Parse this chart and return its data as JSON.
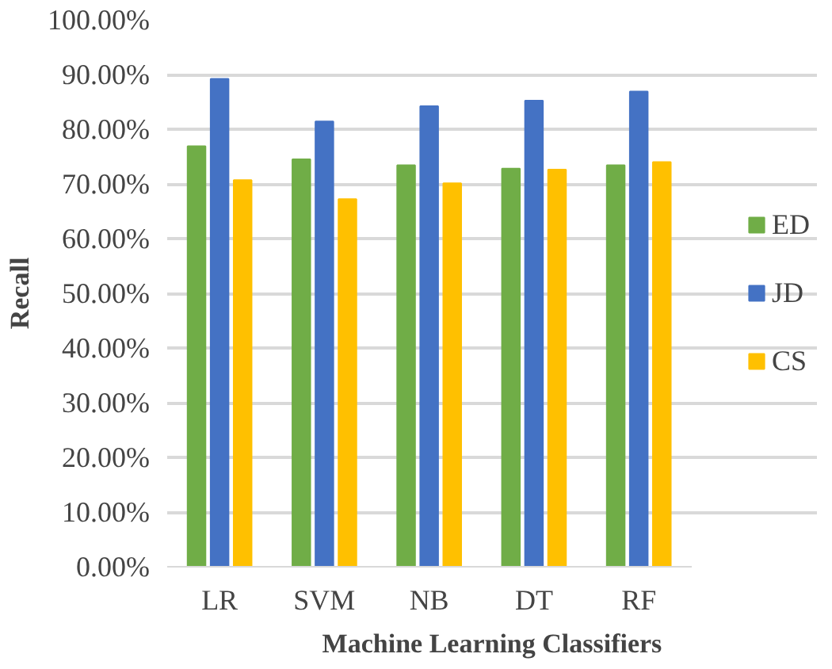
{
  "chart_data": {
    "type": "bar",
    "xlabel": "Machine Learning Classifiers",
    "ylabel": "Recall",
    "categories": [
      "LR",
      "SVM",
      "NB",
      "DT",
      "RF"
    ],
    "series": [
      {
        "name": "ED",
        "color": "#70ad47",
        "values": [
          76.9,
          74.5,
          73.4,
          72.8,
          73.4
        ]
      },
      {
        "name": "JD",
        "color": "#4472c4",
        "values": [
          89.2,
          81.4,
          84.2,
          85.2,
          86.9
        ]
      },
      {
        "name": "CS",
        "color": "#ffc000",
        "values": [
          70.7,
          67.2,
          70.1,
          72.6,
          74.0
        ]
      }
    ],
    "ylim": [
      0,
      100
    ],
    "yticks": [
      {
        "value": 0,
        "label": "0.00%"
      },
      {
        "value": 10,
        "label": "10.00%"
      },
      {
        "value": 20,
        "label": "20.00%"
      },
      {
        "value": 30,
        "label": "30.00%"
      },
      {
        "value": 40,
        "label": "40.00%"
      },
      {
        "value": 50,
        "label": "50.00%"
      },
      {
        "value": 60,
        "label": "60.00%"
      },
      {
        "value": 70,
        "label": "70.00%"
      },
      {
        "value": 80,
        "label": "80.00%"
      },
      {
        "value": 90,
        "label": "90.00%"
      },
      {
        "value": 100,
        "label": "100.00%"
      }
    ],
    "grid": "y",
    "legend": "right"
  }
}
